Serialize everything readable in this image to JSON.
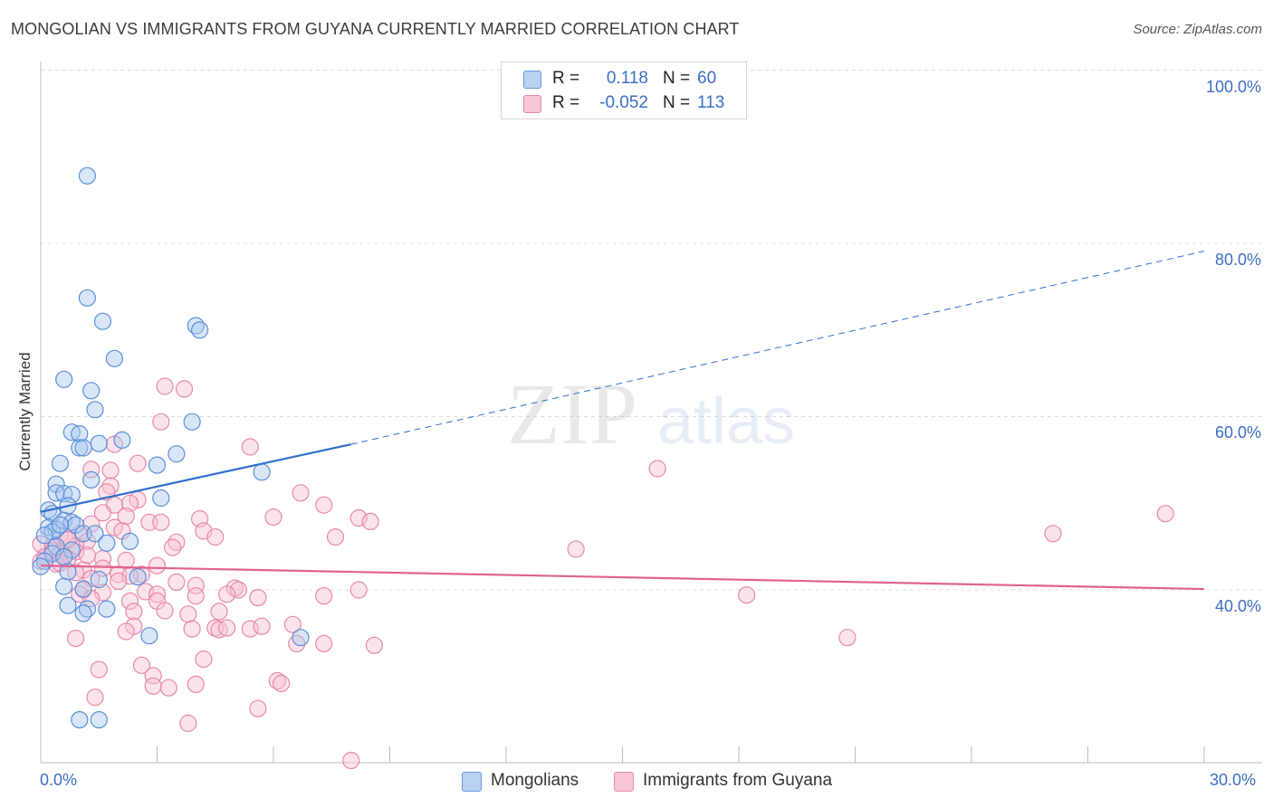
{
  "header": {
    "title": "MONGOLIAN VS IMMIGRANTS FROM GUYANA CURRENTLY MARRIED CORRELATION CHART",
    "source": "Source: ZipAtlas.com"
  },
  "watermark": {
    "zip": "ZIP",
    "atlas": "atlas"
  },
  "legend": {
    "rows": [
      {
        "r_label": "R =",
        "r_value": "0.118",
        "n_label": "N =",
        "n_value": "60"
      },
      {
        "r_label": "R =",
        "r_value": "-0.052",
        "n_label": "N =",
        "n_value": "113"
      }
    ]
  },
  "bottom_legend": [
    "Mongolians",
    "Immigrants from Guyana"
  ],
  "colors": {
    "mongolians_fill": "#a9c8f0",
    "mongolians_stroke": "#5b8fd8",
    "mongolians_line": "#2f6fce",
    "guyana_fill": "#f7c0d2",
    "guyana_stroke": "#e889a9",
    "guyana_line": "#e0628f",
    "tick_text": "#3b6fc4"
  },
  "axes": {
    "ylabel": "Currently Married",
    "x_ticks": [
      "0.0%",
      "30.0%"
    ],
    "y_ticks": [
      "100.0%",
      "80.0%",
      "60.0%",
      "40.0%"
    ]
  },
  "chart_data": {
    "type": "scatter",
    "title": "MONGOLIAN VS IMMIGRANTS FROM GUYANA CURRENTLY MARRIED CORRELATION CHART",
    "xlabel": "",
    "ylabel": "Currently Married",
    "xlim": [
      0,
      30
    ],
    "ylim": [
      20,
      102
    ],
    "grid": true,
    "series": [
      {
        "name": "Mongolians",
        "R": 0.118,
        "N": 60,
        "trend": {
          "x": [
            0.0,
            8.0
          ],
          "y": [
            49.0,
            56.8
          ]
        },
        "trend_extension": {
          "x": [
            8.0,
            30.0
          ],
          "y": [
            56.8,
            79.1
          ]
        },
        "points": [
          [
            1.2,
            87.8
          ],
          [
            1.2,
            73.7
          ],
          [
            1.6,
            71.0
          ],
          [
            4.0,
            70.5
          ],
          [
            4.1,
            70.0
          ],
          [
            1.9,
            66.7
          ],
          [
            0.6,
            64.3
          ],
          [
            1.3,
            63.0
          ],
          [
            1.4,
            60.8
          ],
          [
            3.9,
            59.4
          ],
          [
            0.8,
            58.2
          ],
          [
            1.0,
            58.0
          ],
          [
            2.1,
            57.3
          ],
          [
            1.5,
            56.9
          ],
          [
            1.0,
            56.4
          ],
          [
            1.1,
            56.4
          ],
          [
            3.5,
            55.7
          ],
          [
            0.5,
            54.6
          ],
          [
            3.0,
            54.4
          ],
          [
            5.7,
            53.6
          ],
          [
            1.3,
            52.7
          ],
          [
            0.4,
            52.2
          ],
          [
            0.4,
            51.2
          ],
          [
            0.6,
            51.1
          ],
          [
            0.8,
            51.0
          ],
          [
            3.1,
            50.6
          ],
          [
            0.7,
            49.7
          ],
          [
            0.2,
            49.2
          ],
          [
            0.3,
            48.8
          ],
          [
            0.6,
            48.0
          ],
          [
            0.8,
            47.8
          ],
          [
            0.9,
            47.5
          ],
          [
            0.2,
            47.2
          ],
          [
            0.4,
            47.0
          ],
          [
            0.3,
            46.7
          ],
          [
            1.1,
            46.5
          ],
          [
            1.4,
            46.5
          ],
          [
            0.1,
            46.3
          ],
          [
            2.3,
            45.6
          ],
          [
            1.7,
            45.4
          ],
          [
            0.4,
            45.0
          ],
          [
            0.8,
            44.6
          ],
          [
            0.3,
            44.2
          ],
          [
            0.6,
            43.8
          ],
          [
            0.1,
            43.3
          ],
          [
            0.0,
            42.7
          ],
          [
            0.7,
            42.1
          ],
          [
            1.5,
            41.2
          ],
          [
            2.5,
            41.5
          ],
          [
            0.6,
            40.4
          ],
          [
            1.1,
            40.1
          ],
          [
            0.7,
            38.2
          ],
          [
            1.2,
            37.8
          ],
          [
            1.7,
            37.8
          ],
          [
            1.1,
            37.3
          ],
          [
            2.8,
            34.7
          ],
          [
            6.7,
            34.5
          ],
          [
            1.0,
            25.0
          ],
          [
            1.5,
            25.0
          ],
          [
            0.5,
            47.5
          ]
        ]
      },
      {
        "name": "Immigrants from Guyana",
        "R": -0.052,
        "N": 113,
        "trend": {
          "x": [
            0.0,
            30.0
          ],
          "y": [
            42.8,
            40.1
          ]
        },
        "points": [
          [
            3.2,
            63.5
          ],
          [
            3.7,
            63.2
          ],
          [
            3.1,
            59.4
          ],
          [
            5.4,
            56.5
          ],
          [
            1.9,
            56.8
          ],
          [
            15.9,
            54.0
          ],
          [
            2.5,
            54.6
          ],
          [
            1.3,
            53.9
          ],
          [
            1.8,
            53.8
          ],
          [
            1.8,
            52.0
          ],
          [
            1.7,
            51.3
          ],
          [
            6.7,
            51.2
          ],
          [
            2.5,
            50.4
          ],
          [
            2.3,
            50.0
          ],
          [
            1.9,
            49.8
          ],
          [
            7.3,
            49.8
          ],
          [
            1.6,
            48.9
          ],
          [
            2.2,
            48.5
          ],
          [
            4.1,
            48.2
          ],
          [
            6.0,
            48.4
          ],
          [
            8.2,
            48.3
          ],
          [
            8.5,
            47.9
          ],
          [
            29.0,
            48.8
          ],
          [
            2.8,
            47.8
          ],
          [
            3.1,
            47.8
          ],
          [
            1.3,
            47.6
          ],
          [
            1.9,
            47.2
          ],
          [
            2.1,
            46.8
          ],
          [
            4.2,
            46.8
          ],
          [
            1.0,
            46.5
          ],
          [
            7.6,
            46.1
          ],
          [
            4.5,
            46.1
          ],
          [
            26.1,
            46.5
          ],
          [
            0.5,
            46.3
          ],
          [
            0.7,
            45.8
          ],
          [
            1.2,
            45.6
          ],
          [
            3.5,
            45.5
          ],
          [
            0.0,
            45.3
          ],
          [
            0.3,
            45.0
          ],
          [
            0.9,
            45.1
          ],
          [
            3.4,
            44.9
          ],
          [
            13.8,
            44.7
          ],
          [
            0.3,
            44.5
          ],
          [
            0.5,
            44.2
          ],
          [
            0.9,
            44.4
          ],
          [
            0.6,
            43.9
          ],
          [
            0.1,
            43.8
          ],
          [
            0.7,
            43.6
          ],
          [
            1.6,
            43.6
          ],
          [
            0.0,
            43.3
          ],
          [
            0.4,
            43.0
          ],
          [
            3.0,
            42.8
          ],
          [
            1.6,
            42.5
          ],
          [
            1.1,
            42.3
          ],
          [
            0.9,
            42.0
          ],
          [
            2.0,
            41.8
          ],
          [
            2.6,
            41.8
          ],
          [
            2.3,
            41.6
          ],
          [
            1.3,
            41.3
          ],
          [
            3.5,
            40.9
          ],
          [
            2.0,
            41.0
          ],
          [
            4.0,
            40.5
          ],
          [
            5.0,
            40.2
          ],
          [
            5.1,
            40.0
          ],
          [
            8.2,
            40.0
          ],
          [
            1.1,
            40.0
          ],
          [
            2.7,
            39.8
          ],
          [
            1.6,
            39.7
          ],
          [
            1.0,
            39.5
          ],
          [
            3.0,
            39.5
          ],
          [
            4.0,
            39.3
          ],
          [
            5.6,
            39.1
          ],
          [
            7.3,
            39.3
          ],
          [
            18.2,
            39.4
          ],
          [
            1.3,
            39.0
          ],
          [
            2.3,
            38.7
          ],
          [
            3.0,
            38.7
          ],
          [
            4.8,
            39.5
          ],
          [
            2.4,
            37.5
          ],
          [
            3.2,
            37.6
          ],
          [
            3.8,
            37.2
          ],
          [
            4.6,
            37.5
          ],
          [
            6.5,
            36.0
          ],
          [
            2.4,
            35.8
          ],
          [
            3.9,
            35.5
          ],
          [
            4.5,
            35.6
          ],
          [
            4.6,
            35.4
          ],
          [
            5.4,
            35.5
          ],
          [
            2.2,
            35.2
          ],
          [
            4.8,
            35.6
          ],
          [
            5.7,
            35.8
          ],
          [
            0.9,
            34.4
          ],
          [
            6.6,
            33.8
          ],
          [
            7.3,
            33.8
          ],
          [
            8.6,
            33.6
          ],
          [
            20.8,
            34.5
          ],
          [
            4.2,
            32.0
          ],
          [
            2.6,
            31.3
          ],
          [
            1.5,
            30.8
          ],
          [
            2.9,
            30.1
          ],
          [
            6.1,
            29.5
          ],
          [
            6.2,
            29.2
          ],
          [
            3.3,
            28.7
          ],
          [
            4.0,
            29.1
          ],
          [
            2.9,
            28.9
          ],
          [
            5.6,
            26.3
          ],
          [
            1.4,
            27.6
          ],
          [
            3.8,
            24.6
          ],
          [
            8.0,
            20.3
          ],
          [
            0.7,
            45.8
          ],
          [
            1.2,
            44.0
          ],
          [
            0.5,
            43.1
          ],
          [
            2.2,
            43.4
          ]
        ]
      }
    ]
  }
}
